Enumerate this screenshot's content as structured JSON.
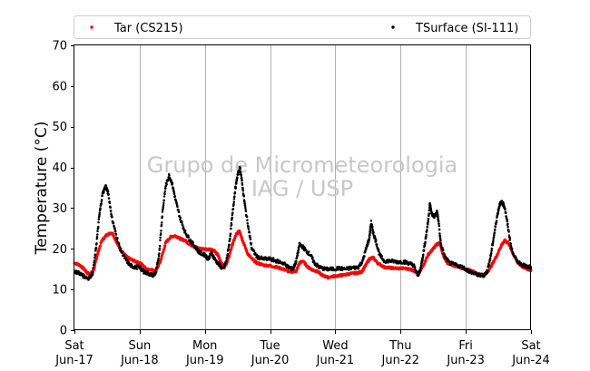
{
  "chart_data": {
    "type": "scatter",
    "ylabel": "Temperature (°C)",
    "ylim": [
      0,
      70
    ],
    "yticks": [
      0,
      10,
      20,
      30,
      40,
      50,
      60,
      70
    ],
    "x_unit": "days",
    "xlim": [
      0,
      7
    ],
    "xticks": [
      {
        "x": 0,
        "line1": "Sat",
        "line2": "Jun-17"
      },
      {
        "x": 1,
        "line1": "Sun",
        "line2": "Jun-18"
      },
      {
        "x": 2,
        "line1": "Mon",
        "line2": "Jun-19"
      },
      {
        "x": 3,
        "line1": "Tue",
        "line2": "Jun-20"
      },
      {
        "x": 4,
        "line1": "Wed",
        "line2": "Jun-21"
      },
      {
        "x": 5,
        "line1": "Thu",
        "line2": "Jun-22"
      },
      {
        "x": 6,
        "line1": "Fri",
        "line2": "Jun-23"
      },
      {
        "x": 7,
        "line1": "Sat",
        "line2": "Jun-24"
      }
    ],
    "grid": "vertical",
    "legend_position": "top",
    "watermark": [
      "Grupo de Micrometeorologia",
      "IAG / USP"
    ],
    "series": [
      {
        "name": "Tar (CS215)",
        "color": "#ff0000",
        "points": [
          [
            0.0,
            16.5
          ],
          [
            0.08,
            16.0
          ],
          [
            0.15,
            15.0
          ],
          [
            0.2,
            14.0
          ],
          [
            0.25,
            13.8
          ],
          [
            0.3,
            15.0
          ],
          [
            0.35,
            18.5
          ],
          [
            0.42,
            22.0
          ],
          [
            0.5,
            23.5
          ],
          [
            0.58,
            24.0
          ],
          [
            0.65,
            21.5
          ],
          [
            0.72,
            19.5
          ],
          [
            0.8,
            18.0
          ],
          [
            0.85,
            17.5
          ],
          [
            0.92,
            17.0
          ],
          [
            1.0,
            16.5
          ],
          [
            1.05,
            16.0
          ],
          [
            1.1,
            15.0
          ],
          [
            1.18,
            14.8
          ],
          [
            1.25,
            14.5
          ],
          [
            1.32,
            17.0
          ],
          [
            1.4,
            21.5
          ],
          [
            1.48,
            23.0
          ],
          [
            1.55,
            23.2
          ],
          [
            1.62,
            22.5
          ],
          [
            1.7,
            22.0
          ],
          [
            1.78,
            21.0
          ],
          [
            1.85,
            20.5
          ],
          [
            1.92,
            20.0
          ],
          [
            2.0,
            20.0
          ],
          [
            2.08,
            19.8
          ],
          [
            2.15,
            19.5
          ],
          [
            2.2,
            18.5
          ],
          [
            2.25,
            16.5
          ],
          [
            2.3,
            15.5
          ],
          [
            2.35,
            17.0
          ],
          [
            2.42,
            21.0
          ],
          [
            2.48,
            23.5
          ],
          [
            2.53,
            24.5
          ],
          [
            2.58,
            22.0
          ],
          [
            2.65,
            19.0
          ],
          [
            2.72,
            17.5
          ],
          [
            2.8,
            16.5
          ],
          [
            2.9,
            16.0
          ],
          [
            3.0,
            15.8
          ],
          [
            3.1,
            15.5
          ],
          [
            3.2,
            15.0
          ],
          [
            3.3,
            14.3
          ],
          [
            3.4,
            14.5
          ],
          [
            3.45,
            16.5
          ],
          [
            3.5,
            17.0
          ],
          [
            3.58,
            15.5
          ],
          [
            3.65,
            14.8
          ],
          [
            3.72,
            14.5
          ],
          [
            3.8,
            13.5
          ],
          [
            3.88,
            13.0
          ],
          [
            4.0,
            13.3
          ],
          [
            4.1,
            13.5
          ],
          [
            4.2,
            13.8
          ],
          [
            4.3,
            14.0
          ],
          [
            4.4,
            14.3
          ],
          [
            4.45,
            15.5
          ],
          [
            4.52,
            17.5
          ],
          [
            4.58,
            17.8
          ],
          [
            4.65,
            16.5
          ],
          [
            4.75,
            15.5
          ],
          [
            4.85,
            15.3
          ],
          [
            4.95,
            15.2
          ],
          [
            5.05,
            15.2
          ],
          [
            5.15,
            15.0
          ],
          [
            5.22,
            14.5
          ],
          [
            5.28,
            13.8
          ],
          [
            5.35,
            16.0
          ],
          [
            5.42,
            18.5
          ],
          [
            5.5,
            20.0
          ],
          [
            5.55,
            21.0
          ],
          [
            5.6,
            21.5
          ],
          [
            5.65,
            18.5
          ],
          [
            5.72,
            16.5
          ],
          [
            5.8,
            16.0
          ],
          [
            5.9,
            15.5
          ],
          [
            6.0,
            15.0
          ],
          [
            6.1,
            14.5
          ],
          [
            6.18,
            13.8
          ],
          [
            6.25,
            13.5
          ],
          [
            6.32,
            14.0
          ],
          [
            6.4,
            16.0
          ],
          [
            6.48,
            18.5
          ],
          [
            6.55,
            21.0
          ],
          [
            6.6,
            22.0
          ],
          [
            6.65,
            21.5
          ],
          [
            6.72,
            19.0
          ],
          [
            6.8,
            16.5
          ],
          [
            6.88,
            15.5
          ],
          [
            6.95,
            15.0
          ],
          [
            7.0,
            14.8
          ]
        ]
      },
      {
        "name": "TSurface (SI-111)",
        "color": "#000000",
        "points": [
          [
            0.0,
            14.5
          ],
          [
            0.08,
            14.0
          ],
          [
            0.15,
            13.2
          ],
          [
            0.22,
            12.8
          ],
          [
            0.28,
            14.0
          ],
          [
            0.33,
            20.0
          ],
          [
            0.38,
            28.0
          ],
          [
            0.43,
            33.5
          ],
          [
            0.48,
            35.5
          ],
          [
            0.52,
            33.5
          ],
          [
            0.57,
            28.0
          ],
          [
            0.63,
            24.0
          ],
          [
            0.7,
            20.0
          ],
          [
            0.78,
            17.5
          ],
          [
            0.85,
            16.0
          ],
          [
            0.92,
            15.5
          ],
          [
            1.0,
            15.5
          ],
          [
            1.05,
            14.5
          ],
          [
            1.12,
            14.0
          ],
          [
            1.2,
            13.5
          ],
          [
            1.25,
            14.0
          ],
          [
            1.3,
            19.0
          ],
          [
            1.35,
            29.0
          ],
          [
            1.4,
            35.5
          ],
          [
            1.45,
            38.0
          ],
          [
            1.5,
            36.0
          ],
          [
            1.55,
            32.0
          ],
          [
            1.62,
            27.5
          ],
          [
            1.7,
            24.0
          ],
          [
            1.78,
            22.0
          ],
          [
            1.85,
            20.5
          ],
          [
            1.92,
            19.0
          ],
          [
            2.0,
            18.5
          ],
          [
            2.05,
            17.5
          ],
          [
            2.1,
            19.0
          ],
          [
            2.15,
            17.5
          ],
          [
            2.22,
            16.0
          ],
          [
            2.28,
            15.0
          ],
          [
            2.33,
            17.0
          ],
          [
            2.38,
            22.0
          ],
          [
            2.42,
            28.0
          ],
          [
            2.46,
            34.0
          ],
          [
            2.5,
            38.0
          ],
          [
            2.54,
            40.0
          ],
          [
            2.58,
            35.0
          ],
          [
            2.62,
            30.0
          ],
          [
            2.68,
            24.0
          ],
          [
            2.72,
            20.0
          ],
          [
            2.8,
            18.0
          ],
          [
            2.9,
            17.5
          ],
          [
            3.0,
            17.5
          ],
          [
            3.1,
            17.0
          ],
          [
            3.2,
            16.5
          ],
          [
            3.28,
            15.5
          ],
          [
            3.35,
            15.0
          ],
          [
            3.4,
            17.0
          ],
          [
            3.45,
            21.0
          ],
          [
            3.5,
            20.5
          ],
          [
            3.55,
            19.5
          ],
          [
            3.62,
            18.5
          ],
          [
            3.68,
            16.5
          ],
          [
            3.75,
            15.5
          ],
          [
            3.85,
            15.0
          ],
          [
            3.95,
            15.0
          ],
          [
            4.05,
            15.2
          ],
          [
            4.15,
            15.0
          ],
          [
            4.25,
            15.3
          ],
          [
            4.35,
            15.5
          ],
          [
            4.42,
            17.0
          ],
          [
            4.48,
            20.5
          ],
          [
            4.52,
            22.5
          ],
          [
            4.55,
            26.5
          ],
          [
            4.58,
            24.0
          ],
          [
            4.62,
            22.0
          ],
          [
            4.68,
            18.5
          ],
          [
            4.75,
            17.0
          ],
          [
            4.85,
            17.0
          ],
          [
            4.95,
            16.8
          ],
          [
            5.05,
            16.8
          ],
          [
            5.12,
            16.5
          ],
          [
            5.2,
            16.0
          ],
          [
            5.26,
            13.5
          ],
          [
            5.3,
            14.5
          ],
          [
            5.34,
            18.0
          ],
          [
            5.38,
            22.0
          ],
          [
            5.42,
            26.5
          ],
          [
            5.45,
            31.0
          ],
          [
            5.48,
            28.5
          ],
          [
            5.52,
            28.0
          ],
          [
            5.56,
            29.0
          ],
          [
            5.58,
            27.0
          ],
          [
            5.62,
            21.0
          ],
          [
            5.68,
            18.0
          ],
          [
            5.75,
            16.5
          ],
          [
            5.85,
            16.0
          ],
          [
            5.95,
            15.5
          ],
          [
            6.05,
            14.5
          ],
          [
            6.12,
            14.0
          ],
          [
            6.2,
            13.5
          ],
          [
            6.28,
            13.5
          ],
          [
            6.33,
            14.5
          ],
          [
            6.38,
            18.0
          ],
          [
            6.43,
            23.0
          ],
          [
            6.48,
            28.0
          ],
          [
            6.52,
            31.0
          ],
          [
            6.56,
            31.5
          ],
          [
            6.6,
            30.0
          ],
          [
            6.65,
            25.0
          ],
          [
            6.7,
            20.0
          ],
          [
            6.78,
            17.0
          ],
          [
            6.88,
            16.0
          ],
          [
            6.95,
            15.5
          ],
          [
            7.0,
            15.5
          ]
        ]
      }
    ]
  }
}
